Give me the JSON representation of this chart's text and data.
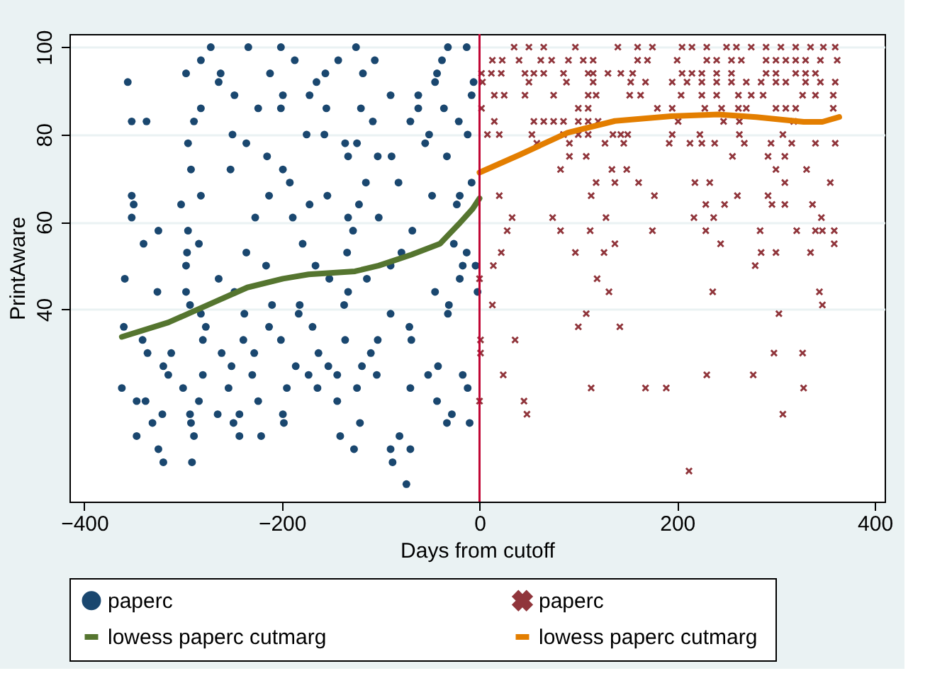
{
  "chart_data": {
    "type": "scatter",
    "xlabel": "Days from cutoff",
    "ylabel": "PrintAware",
    "xlim": [
      -415,
      410
    ],
    "ylim": [
      -4,
      103
    ],
    "xticks": [
      -400,
      -200,
      0,
      200,
      400
    ],
    "yticks": [
      40,
      60,
      80,
      100
    ],
    "grid": "y",
    "legend": "bottom",
    "ref_lines": [
      {
        "axis": "x",
        "value": 0,
        "color": "#c10534"
      }
    ],
    "series": [
      {
        "name": "paperc",
        "type": "scatter",
        "marker": "circle",
        "color": "#1a476f",
        "x": [
          -272,
          -234,
          -201,
          -125,
          -32,
          -13,
          -282,
          -187,
          -143,
          -106,
          -38,
          -297,
          -262,
          -212,
          -156,
          -118,
          -43,
          -356,
          -264,
          -165,
          -45,
          -6,
          -248,
          -199,
          -172,
          -90,
          -62,
          -8,
          -282,
          -224,
          -201,
          -155,
          -120,
          -62,
          -36,
          -352,
          -337,
          -289,
          -108,
          -70,
          -21,
          -250,
          -175,
          -157,
          -51,
          -12,
          -295,
          -236,
          -136,
          -124,
          -55,
          -215,
          -133,
          -103,
          -89,
          -33,
          -292,
          -252,
          -199,
          -192,
          -115,
          -82,
          -8,
          -352,
          -282,
          -213,
          -154,
          -48,
          -20,
          -350,
          -302,
          -172,
          -122,
          -23,
          -352,
          -227,
          -189,
          -133,
          -102,
          -325,
          -295,
          -128,
          -68,
          -340,
          -284,
          -179,
          -26,
          -296,
          -236,
          -134,
          -79,
          -13,
          -297,
          -216,
          -166,
          -90,
          -17,
          -4,
          -359,
          -264,
          -152,
          -114,
          -20,
          -326,
          -297,
          -248,
          -133,
          -45,
          -2,
          -293,
          -210,
          -182,
          -137,
          -31,
          -282,
          -238,
          -183,
          -90,
          -32,
          -360,
          -277,
          -213,
          -169,
          -71,
          -341,
          -280,
          -239,
          -201,
          -136,
          -103,
          -69,
          -336,
          -312,
          -261,
          -228,
          -163,
          -110,
          -320,
          -251,
          -186,
          -153,
          -119,
          -42,
          -315,
          -280,
          -230,
          -173,
          -144,
          -104,
          -52,
          -17,
          -362,
          -300,
          -254,
          -195,
          -164,
          -124,
          -70,
          -12,
          -347,
          -338,
          -284,
          -224,
          -144,
          -43,
          -321,
          -293,
          -265,
          -243,
          -199,
          -28,
          -331,
          -292,
          -249,
          -198,
          -121,
          -33,
          -10,
          -347,
          -289,
          -243,
          -221,
          -141,
          -81,
          -325,
          -127,
          -90,
          -70,
          -320,
          -291,
          -88,
          -74
        ],
        "values": [
          100,
          100,
          100,
          100,
          100,
          100,
          97,
          97,
          97,
          97,
          97,
          94,
          94,
          94,
          94,
          94,
          94,
          92,
          92,
          92,
          92,
          92,
          89,
          89,
          89,
          89,
          89,
          89,
          86,
          86,
          86,
          86,
          86,
          86,
          86,
          83,
          83,
          83,
          83,
          83,
          83,
          80,
          80,
          80,
          80,
          80,
          78,
          78,
          78,
          78,
          78,
          75,
          75,
          75,
          75,
          75,
          72,
          72,
          72,
          69,
          69,
          69,
          69,
          66,
          66,
          66,
          66,
          66,
          66,
          64,
          64,
          64,
          64,
          64,
          61,
          61,
          61,
          61,
          61,
          58,
          58,
          58,
          58,
          55,
          55,
          55,
          55,
          53,
          53,
          53,
          53,
          53,
          50,
          50,
          50,
          50,
          50,
          50,
          47,
          47,
          47,
          47,
          47,
          44,
          44,
          44,
          44,
          44,
          44,
          41,
          41,
          41,
          41,
          41,
          39,
          39,
          39,
          39,
          39,
          36,
          36,
          36,
          36,
          36,
          33,
          33,
          33,
          33,
          33,
          33,
          33,
          30,
          30,
          30,
          30,
          30,
          30,
          27,
          27,
          27,
          27,
          27,
          27,
          25,
          25,
          25,
          25,
          25,
          25,
          25,
          25,
          22,
          22,
          22,
          22,
          22,
          22,
          22,
          22,
          19,
          19,
          19,
          19,
          19,
          19,
          16,
          16,
          16,
          16,
          16,
          16,
          14,
          14,
          14,
          14,
          14,
          14,
          14,
          11,
          11,
          11,
          11,
          11,
          11,
          8,
          8,
          8,
          8,
          5,
          5,
          5,
          0
        ]
      },
      {
        "name": "paperc",
        "type": "scatter",
        "marker": "cross",
        "color": "#90353b",
        "x": [
          35,
          50,
          65,
          97,
          140,
          160,
          175,
          205,
          215,
          230,
          250,
          260,
          275,
          290,
          305,
          320,
          335,
          348,
          360,
          13,
          23,
          40,
          62,
          73,
          90,
          105,
          115,
          160,
          170,
          200,
          230,
          240,
          255,
          265,
          290,
          300,
          310,
          320,
          330,
          345,
          362,
          2,
          12,
          22,
          46,
          55,
          65,
          85,
          110,
          115,
          130,
          143,
          155,
          205,
          215,
          225,
          240,
          255,
          290,
          300,
          320,
          330,
          340,
          3,
          50,
          88,
          115,
          153,
          168,
          195,
          210,
          225,
          240,
          255,
          270,
          285,
          300,
          310,
          330,
          345,
          360,
          15,
          25,
          46,
          75,
          110,
          118,
          152,
          163,
          204,
          225,
          240,
          262,
          275,
          287,
          327,
          340,
          358,
          2,
          100,
          110,
          180,
          195,
          228,
          245,
          262,
          270,
          300,
          310,
          320,
          358,
          15,
          55,
          65,
          75,
          85,
          100,
          110,
          120,
          201,
          247,
          263,
          318,
          8,
          20,
          53,
          85,
          100,
          110,
          135,
          143,
          150,
          195,
          223,
          263,
          307,
          58,
          91,
          127,
          146,
          192,
          213,
          225,
          238,
          268,
          295,
          316,
          340,
          360,
          91,
          108,
          256,
          292,
          309,
          82,
          134,
          149,
          300,
          331,
          118,
          137,
          161,
          218,
          233,
          309,
          355,
          20,
          113,
          177,
          261,
          292,
          229,
          248,
          296,
          309,
          337,
          33,
          74,
          128,
          217,
          237,
          346,
          28,
          82,
          112,
          175,
          229,
          284,
          321,
          340,
          347,
          359,
          137,
          244,
          359,
          22,
          97,
          126,
          285,
          300,
          335,
          14,
          279,
          0,
          119,
          131,
          236,
          344,
          13,
          347,
          108,
          303,
          100,
          142,
          1,
          36,
          1,
          298,
          327,
          24,
          230,
          277,
          113,
          168,
          189,
          328,
          0,
          45,
          48,
          307,
          212
        ],
        "values": [
          100,
          100,
          100,
          100,
          100,
          100,
          100,
          100,
          100,
          100,
          100,
          100,
          100,
          100,
          100,
          100,
          100,
          100,
          100,
          97,
          97,
          97,
          97,
          97,
          97,
          97,
          97,
          97,
          97,
          97,
          97,
          97,
          97,
          97,
          97,
          97,
          97,
          97,
          97,
          97,
          97,
          94,
          94,
          94,
          94,
          94,
          94,
          94,
          94,
          94,
          94,
          94,
          94,
          94,
          94,
          94,
          94,
          94,
          94,
          94,
          94,
          94,
          94,
          92,
          92,
          92,
          92,
          92,
          92,
          92,
          92,
          92,
          92,
          92,
          92,
          92,
          92,
          92,
          92,
          92,
          92,
          89,
          89,
          89,
          89,
          89,
          89,
          89,
          89,
          89,
          89,
          89,
          89,
          89,
          89,
          89,
          89,
          89,
          86,
          86,
          86,
          86,
          86,
          86,
          86,
          86,
          86,
          86,
          86,
          86,
          86,
          83,
          83,
          83,
          83,
          83,
          83,
          83,
          83,
          83,
          83,
          83,
          83,
          80,
          80,
          80,
          80,
          80,
          80,
          80,
          80,
          80,
          80,
          80,
          80,
          80,
          78,
          78,
          78,
          78,
          78,
          78,
          78,
          78,
          78,
          78,
          78,
          78,
          78,
          75,
          75,
          75,
          75,
          75,
          72,
          72,
          72,
          72,
          72,
          69,
          69,
          69,
          69,
          69,
          69,
          69,
          66,
          66,
          66,
          66,
          66,
          64,
          64,
          64,
          64,
          64,
          61,
          61,
          61,
          61,
          61,
          61,
          58,
          58,
          58,
          58,
          58,
          58,
          58,
          58,
          58,
          58,
          55,
          55,
          55,
          53,
          53,
          53,
          53,
          53,
          53,
          50,
          50,
          47,
          47,
          44,
          44,
          44,
          41,
          41,
          39,
          39,
          36,
          36,
          33,
          33,
          30,
          30,
          30,
          25,
          25,
          25,
          22,
          22,
          22,
          22,
          19,
          19,
          16,
          16,
          3
        ]
      },
      {
        "name": "lowess paperc  cutmarg",
        "type": "line",
        "marker": "none",
        "color": "#55752f",
        "x": [
          -362,
          -315,
          -268,
          -235,
          -199,
          -173,
          -126,
          -102,
          -69,
          -40,
          -21,
          -7,
          0
        ],
        "values": [
          33.7,
          37,
          41.7,
          45,
          47,
          48,
          48.7,
          50,
          52.5,
          55,
          59.5,
          63,
          65.4
        ]
      },
      {
        "name": "lowess paperc  cutmarg",
        "type": "line",
        "marker": "none",
        "color": "#e37e00",
        "x": [
          0,
          41,
          89,
          137,
          194,
          242,
          280,
          328,
          347,
          364
        ],
        "values": [
          71.3,
          75.4,
          80.4,
          83.1,
          84.2,
          84.6,
          84,
          82.9,
          82.9,
          84
        ]
      }
    ]
  }
}
